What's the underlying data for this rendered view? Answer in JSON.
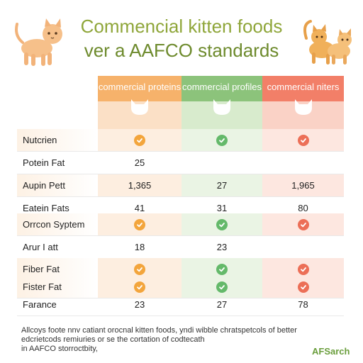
{
  "title": {
    "line1": "Commencial kitten foods",
    "line2": "ver a AAFCO standards"
  },
  "columns": [
    {
      "label": "commercial proteins",
      "color": "#f6b26b",
      "icon": "cat-face-icon"
    },
    {
      "label": "commercial profiles",
      "color": "#8cc37b",
      "icon": "cat-face-icon"
    },
    {
      "label": "commercial niters",
      "color": "#f27f68",
      "icon": "cat-face-icon"
    }
  ],
  "rows": [
    {
      "label": "Nutcrien",
      "type": "check",
      "shaded": true
    },
    {
      "label": "Potein Fat",
      "type": "value",
      "values": [
        "25",
        "",
        ""
      ],
      "shaded": false
    },
    {
      "label": "Aupin Pett",
      "type": "value",
      "values": [
        "1,365",
        "27",
        "1,965"
      ],
      "shaded": true
    },
    {
      "label": "Eatein Fats",
      "type": "value",
      "values": [
        "41",
        "31",
        "80"
      ],
      "shaded": false
    },
    {
      "label": "Orrcon Syptem",
      "type": "check",
      "shaded": true
    },
    {
      "label": "Arur I att",
      "type": "value",
      "values": [
        "18",
        "23",
        ""
      ],
      "shaded": false
    },
    {
      "label": "Fiber Fat",
      "type": "check",
      "shaded": true
    },
    {
      "label": "Fister Fat",
      "type": "check",
      "shaded": true
    },
    {
      "label": "Farance",
      "type": "value",
      "values": [
        "23",
        "27",
        "78"
      ],
      "shaded": false
    }
  ],
  "colors": {
    "check_orange": "#f3a53c",
    "check_green": "#64b96a",
    "check_red": "#ec6f57",
    "title_green": "#8fa63a"
  },
  "footnote": {
    "line1": "Allcoys foote nnv catiant orocnal kitten foods, yndi wibble chratspetcols of better",
    "line2": "edcrietcods remiuries or se the cortation of codtecath",
    "line3": "in AAFCO storroctbity,"
  },
  "brand": "AFSarch"
}
